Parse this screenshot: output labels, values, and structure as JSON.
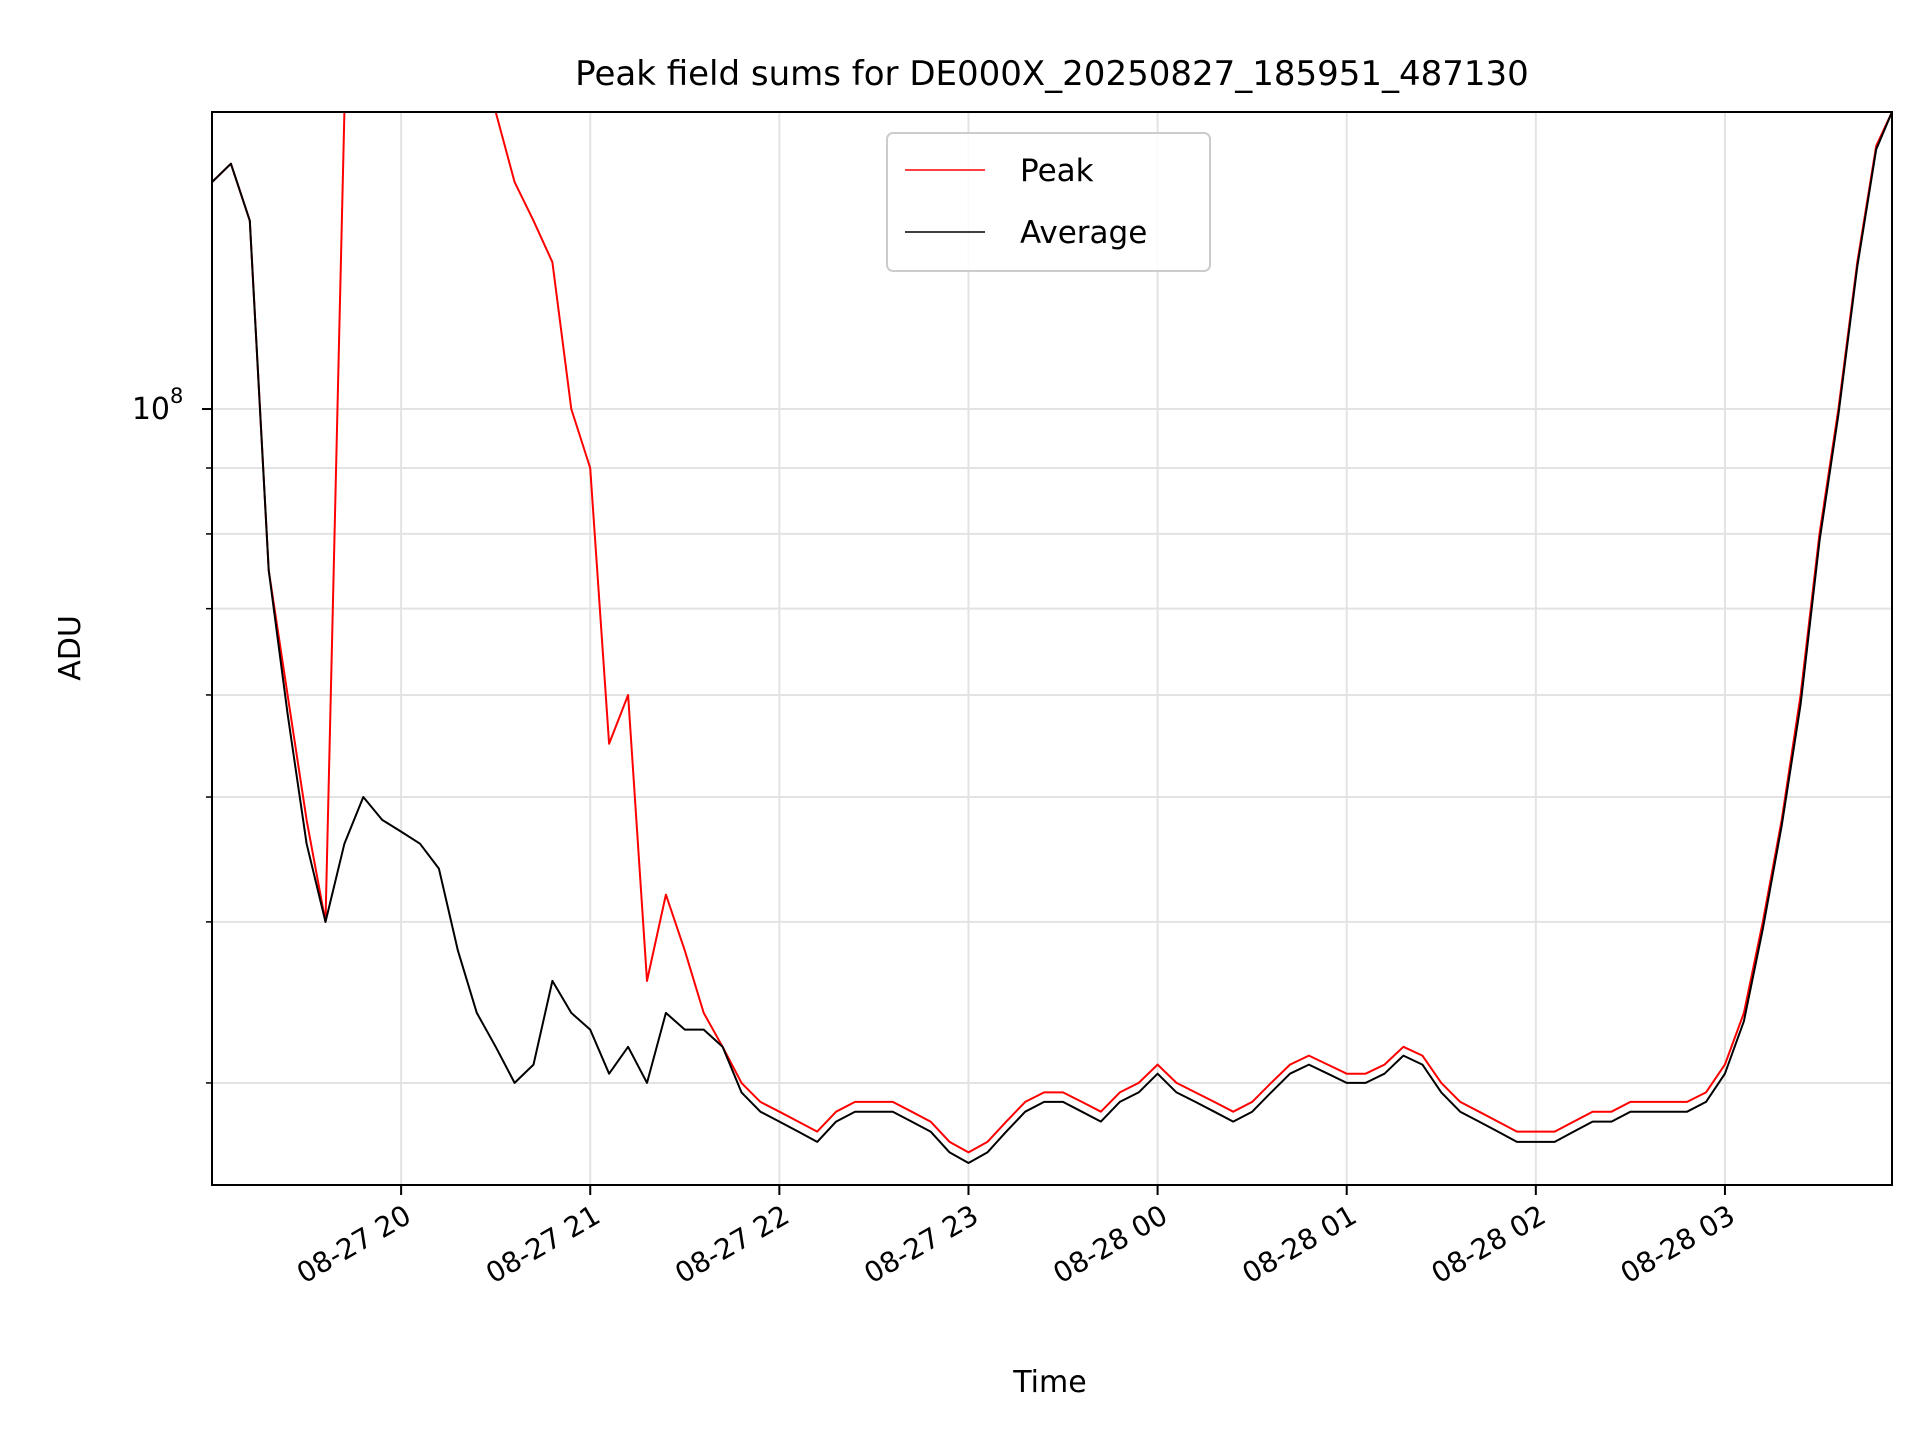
{
  "chart_data": {
    "type": "line",
    "title": "Peak field sums for DE000X_20250827_185951_487130",
    "xlabel": "Time",
    "ylabel": "ADU",
    "yscale": "log",
    "ylim": [
      25000000,
      170000000
    ],
    "xlim": [
      "2025-08-27 19:00",
      "2025-08-28 03:53"
    ],
    "x_ticks": [
      {
        "t": "2025-08-27 20:00",
        "label": "08-27 20"
      },
      {
        "t": "2025-08-27 21:00",
        "label": "08-27 21"
      },
      {
        "t": "2025-08-27 22:00",
        "label": "08-27 22"
      },
      {
        "t": "2025-08-27 23:00",
        "label": "08-27 23"
      },
      {
        "t": "2025-08-28 00:00",
        "label": "08-28 00"
      },
      {
        "t": "2025-08-28 01:00",
        "label": "08-28 01"
      },
      {
        "t": "2025-08-28 02:00",
        "label": "08-28 02"
      },
      {
        "t": "2025-08-28 03:00",
        "label": "08-28 03"
      }
    ],
    "y_major_ticks": [
      {
        "value": 100000000,
        "base": "10",
        "exp": "8"
      }
    ],
    "y_minor_ticks": [
      30000000,
      40000000,
      50000000,
      60000000,
      70000000,
      80000000,
      90000000,
      200000000
    ],
    "grid": true,
    "legend_position": "top-center",
    "series": [
      {
        "name": "Peak",
        "color": "#ff0000",
        "x": [
          "2025-08-27 19:00",
          "2025-08-27 19:06",
          "2025-08-27 19:12",
          "2025-08-27 19:18",
          "2025-08-27 19:24",
          "2025-08-27 19:30",
          "2025-08-27 19:36",
          "2025-08-27 19:42",
          "2025-08-27 19:48",
          "2025-08-27 19:54",
          "2025-08-27 20:00",
          "2025-08-27 20:06",
          "2025-08-27 20:12",
          "2025-08-27 20:18",
          "2025-08-27 20:24",
          "2025-08-27 20:30",
          "2025-08-27 20:36",
          "2025-08-27 20:42",
          "2025-08-27 20:48",
          "2025-08-27 20:54",
          "2025-08-27 21:00",
          "2025-08-27 21:06",
          "2025-08-27 21:12",
          "2025-08-27 21:18",
          "2025-08-27 21:24",
          "2025-08-27 21:30",
          "2025-08-27 21:36",
          "2025-08-27 21:42",
          "2025-08-27 21:48",
          "2025-08-27 21:54",
          "2025-08-27 22:00",
          "2025-08-27 22:06",
          "2025-08-27 22:12",
          "2025-08-27 22:18",
          "2025-08-27 22:24",
          "2025-08-27 22:30",
          "2025-08-27 22:36",
          "2025-08-27 22:42",
          "2025-08-27 22:48",
          "2025-08-27 22:54",
          "2025-08-27 23:00",
          "2025-08-27 23:06",
          "2025-08-27 23:12",
          "2025-08-27 23:18",
          "2025-08-27 23:24",
          "2025-08-27 23:30",
          "2025-08-27 23:36",
          "2025-08-27 23:42",
          "2025-08-27 23:48",
          "2025-08-27 23:54",
          "2025-08-28 00:00",
          "2025-08-28 00:06",
          "2025-08-28 00:12",
          "2025-08-28 00:18",
          "2025-08-28 00:24",
          "2025-08-28 00:30",
          "2025-08-28 00:36",
          "2025-08-28 00:42",
          "2025-08-28 00:48",
          "2025-08-28 00:54",
          "2025-08-28 01:00",
          "2025-08-28 01:06",
          "2025-08-28 01:12",
          "2025-08-28 01:18",
          "2025-08-28 01:24",
          "2025-08-28 01:30",
          "2025-08-28 01:36",
          "2025-08-28 01:42",
          "2025-08-28 01:48",
          "2025-08-28 01:54",
          "2025-08-28 02:00",
          "2025-08-28 02:06",
          "2025-08-28 02:12",
          "2025-08-28 02:18",
          "2025-08-28 02:24",
          "2025-08-28 02:30",
          "2025-08-28 02:36",
          "2025-08-28 02:42",
          "2025-08-28 02:48",
          "2025-08-28 02:54",
          "2025-08-28 03:00",
          "2025-08-28 03:06",
          "2025-08-28 03:12",
          "2025-08-28 03:18",
          "2025-08-28 03:24",
          "2025-08-28 03:30",
          "2025-08-28 03:36",
          "2025-08-28 03:42",
          "2025-08-28 03:48",
          "2025-08-28 03:53"
        ],
        "values": [
          150000000,
          155000000,
          140000000,
          75000000,
          60000000,
          48000000,
          40000000,
          170000000,
          170000000,
          170000000,
          170000000,
          170000000,
          170000000,
          170000000,
          170000000,
          170000000,
          150000000,
          140000000,
          130000000,
          100000000,
          90000000,
          55000000,
          60000000,
          36000000,
          42000000,
          38000000,
          34000000,
          32000000,
          30000000,
          29000000,
          28500000,
          28000000,
          27500000,
          28500000,
          29000000,
          29000000,
          29000000,
          28500000,
          28000000,
          27000000,
          26500000,
          27000000,
          28000000,
          29000000,
          29500000,
          29500000,
          29000000,
          28500000,
          29500000,
          30000000,
          31000000,
          30000000,
          29500000,
          29000000,
          28500000,
          29000000,
          30000000,
          31000000,
          31500000,
          31000000,
          30500000,
          30500000,
          31000000,
          32000000,
          31500000,
          30000000,
          29000000,
          28500000,
          28000000,
          27500000,
          27500000,
          27500000,
          28000000,
          28500000,
          28500000,
          29000000,
          29000000,
          29000000,
          29000000,
          29500000,
          31000000,
          34000000,
          40000000,
          48000000,
          60000000,
          80000000,
          100000000,
          130000000,
          160000000,
          170000000
        ]
      },
      {
        "name": "Average",
        "color": "#000000",
        "x": [
          "2025-08-27 19:00",
          "2025-08-27 19:06",
          "2025-08-27 19:12",
          "2025-08-27 19:18",
          "2025-08-27 19:24",
          "2025-08-27 19:30",
          "2025-08-27 19:36",
          "2025-08-27 19:42",
          "2025-08-27 19:48",
          "2025-08-27 19:54",
          "2025-08-27 20:00",
          "2025-08-27 20:06",
          "2025-08-27 20:12",
          "2025-08-27 20:18",
          "2025-08-27 20:24",
          "2025-08-27 20:30",
          "2025-08-27 20:36",
          "2025-08-27 20:42",
          "2025-08-27 20:48",
          "2025-08-27 20:54",
          "2025-08-27 21:00",
          "2025-08-27 21:06",
          "2025-08-27 21:12",
          "2025-08-27 21:18",
          "2025-08-27 21:24",
          "2025-08-27 21:30",
          "2025-08-27 21:36",
          "2025-08-27 21:42",
          "2025-08-27 21:48",
          "2025-08-27 21:54",
          "2025-08-27 22:00",
          "2025-08-27 22:06",
          "2025-08-27 22:12",
          "2025-08-27 22:18",
          "2025-08-27 22:24",
          "2025-08-27 22:30",
          "2025-08-27 22:36",
          "2025-08-27 22:42",
          "2025-08-27 22:48",
          "2025-08-27 22:54",
          "2025-08-27 23:00",
          "2025-08-27 23:06",
          "2025-08-27 23:12",
          "2025-08-27 23:18",
          "2025-08-27 23:24",
          "2025-08-27 23:30",
          "2025-08-27 23:36",
          "2025-08-27 23:42",
          "2025-08-27 23:48",
          "2025-08-27 23:54",
          "2025-08-28 00:00",
          "2025-08-28 00:06",
          "2025-08-28 00:12",
          "2025-08-28 00:18",
          "2025-08-28 00:24",
          "2025-08-28 00:30",
          "2025-08-28 00:36",
          "2025-08-28 00:42",
          "2025-08-28 00:48",
          "2025-08-28 00:54",
          "2025-08-28 01:00",
          "2025-08-28 01:06",
          "2025-08-28 01:12",
          "2025-08-28 01:18",
          "2025-08-28 01:24",
          "2025-08-28 01:30",
          "2025-08-28 01:36",
          "2025-08-28 01:42",
          "2025-08-28 01:48",
          "2025-08-28 01:54",
          "2025-08-28 02:00",
          "2025-08-28 02:06",
          "2025-08-28 02:12",
          "2025-08-28 02:18",
          "2025-08-28 02:24",
          "2025-08-28 02:30",
          "2025-08-28 02:36",
          "2025-08-28 02:42",
          "2025-08-28 02:48",
          "2025-08-28 02:54",
          "2025-08-28 03:00",
          "2025-08-28 03:06",
          "2025-08-28 03:12",
          "2025-08-28 03:18",
          "2025-08-28 03:24",
          "2025-08-28 03:30",
          "2025-08-28 03:36",
          "2025-08-28 03:42",
          "2025-08-28 03:48",
          "2025-08-28 03:53"
        ],
        "values": [
          150000000,
          155000000,
          140000000,
          75000000,
          58000000,
          46000000,
          40000000,
          46000000,
          50000000,
          48000000,
          47000000,
          46000000,
          44000000,
          38000000,
          34000000,
          32000000,
          30000000,
          31000000,
          36000000,
          34000000,
          33000000,
          30500000,
          32000000,
          30000000,
          34000000,
          33000000,
          33000000,
          32000000,
          29500000,
          28500000,
          28000000,
          27500000,
          27000000,
          28000000,
          28500000,
          28500000,
          28500000,
          28000000,
          27500000,
          26500000,
          26000000,
          26500000,
          27500000,
          28500000,
          29000000,
          29000000,
          28500000,
          28000000,
          29000000,
          29500000,
          30500000,
          29500000,
          29000000,
          28500000,
          28000000,
          28500000,
          29500000,
          30500000,
          31000000,
          30500000,
          30000000,
          30000000,
          30500000,
          31500000,
          31000000,
          29500000,
          28500000,
          28000000,
          27500000,
          27000000,
          27000000,
          27000000,
          27500000,
          28000000,
          28000000,
          28500000,
          28500000,
          28500000,
          28500000,
          29000000,
          30500000,
          33500000,
          39500000,
          47500000,
          59000000,
          79000000,
          99000000,
          129000000,
          159000000,
          170000000
        ]
      }
    ]
  }
}
